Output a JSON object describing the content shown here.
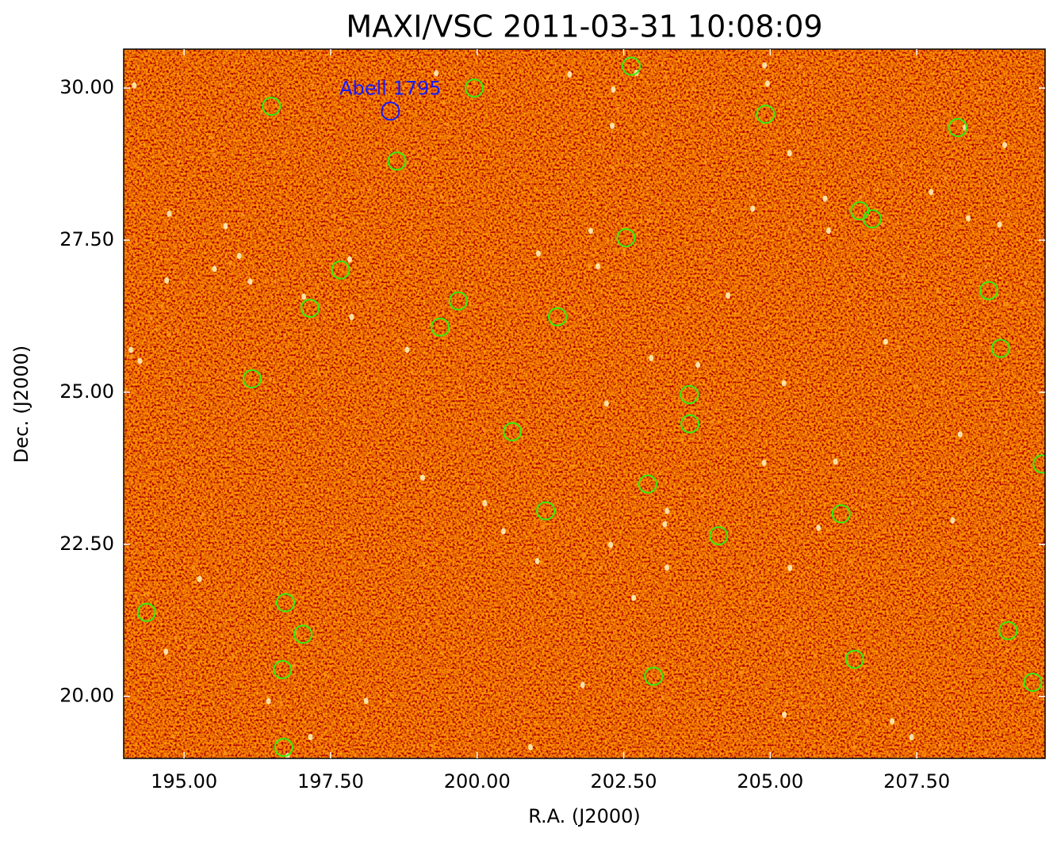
{
  "chart_data": {
    "type": "scatter",
    "title": "MAXI/VSC 2011-03-31 10:08:09",
    "x_label": "R.A. (J2000)",
    "y_label": "Dec. (J2000)",
    "xlim": [
      193.97,
      209.69
    ],
    "ylim": [
      18.98,
      30.64
    ],
    "xticks": [
      {
        "value": 195,
        "label": "195.00"
      },
      {
        "value": 197.5,
        "label": "197.50"
      },
      {
        "value": 200,
        "label": "200.00"
      },
      {
        "value": 202.5,
        "label": "202.50"
      },
      {
        "value": 205,
        "label": "205.00"
      },
      {
        "value": 207.5,
        "label": "207.50"
      }
    ],
    "yticks": [
      {
        "value": 20,
        "label": "20.00"
      },
      {
        "value": 22.5,
        "label": "22.50"
      },
      {
        "value": 25,
        "label": "25.00"
      },
      {
        "value": 27.5,
        "label": "27.50"
      },
      {
        "value": 30,
        "label": "30.00"
      }
    ],
    "sources": {
      "color": "#33ee11",
      "x": [
        196.49,
        199.95,
        202.63,
        204.92,
        208.2,
        198.63,
        206.53,
        206.74,
        202.54,
        197.67,
        197.15,
        199.68,
        199.37,
        201.37,
        208.73,
        208.93,
        196.16,
        203.62,
        203.63,
        200.6,
        209.64,
        202.91,
        201.17,
        206.21,
        204.12,
        194.36,
        196.73,
        197.03,
        209.06,
        206.44,
        196.68,
        203.01,
        209.48,
        196.7
      ],
      "y": [
        29.7,
        30.0,
        30.36,
        29.57,
        29.35,
        28.8,
        27.98,
        27.85,
        27.54,
        27.01,
        26.38,
        26.5,
        26.07,
        26.24,
        26.67,
        25.72,
        25.22,
        24.96,
        24.48,
        24.35,
        23.82,
        23.49,
        23.05,
        23.0,
        22.64,
        21.38,
        21.54,
        21.02,
        21.08,
        20.61,
        20.44,
        20.33,
        20.23,
        19.16
      ]
    },
    "annotations": [
      {
        "text": "Abell 1795",
        "x": 198.52,
        "y": 29.62,
        "color": "#1a1aff"
      }
    ]
  }
}
